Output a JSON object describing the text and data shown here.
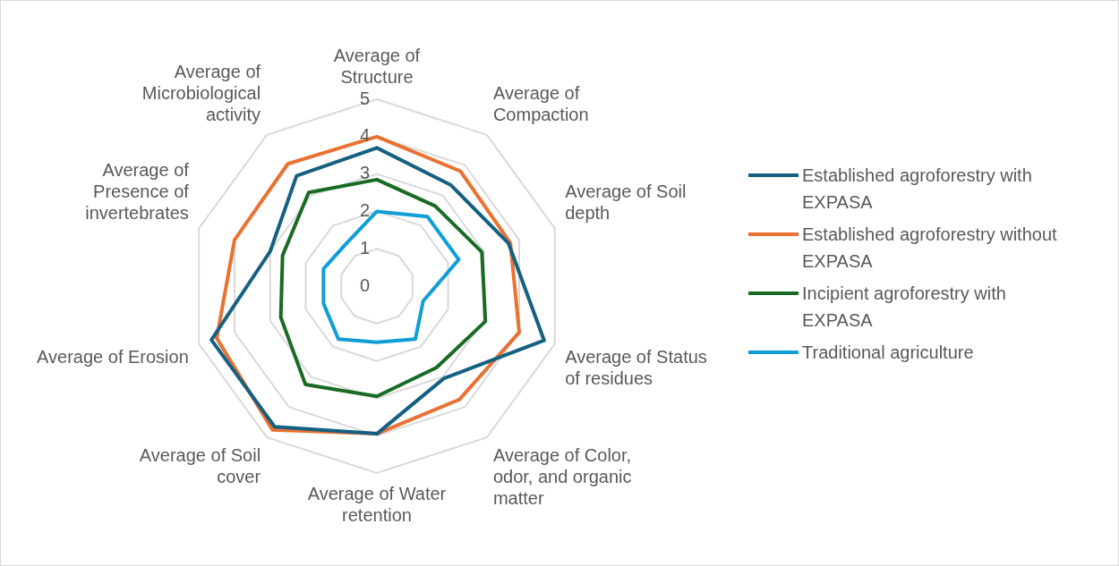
{
  "chart_data": {
    "type": "radar",
    "categories": [
      "Average of Structure",
      "Average of Compaction",
      "Average of Soil depth",
      "Average of Status of residues",
      "Average of Color, odor, and organic matter",
      "Average of Water retention",
      "Average of Soil cover",
      "Average of Erosion",
      "Average of Presence of invertebrates",
      "Average of Microbiological activity"
    ],
    "series": [
      {
        "name": "Established agroforestry with EXPASA",
        "color": "#156082",
        "values": [
          3.7,
          3.35,
          3.7,
          4.7,
          3.05,
          3.95,
          4.65,
          4.65,
          3.0,
          3.65
        ]
      },
      {
        "name": "Established agroforestry without EXPASA",
        "color": "#e97132",
        "values": [
          4.0,
          3.8,
          3.75,
          4.0,
          3.75,
          3.95,
          4.75,
          4.5,
          4.0,
          4.05
        ]
      },
      {
        "name": "Incipient agroforestry with EXPASA",
        "color": "#196b24",
        "values": [
          2.85,
          2.65,
          2.95,
          3.05,
          2.7,
          2.95,
          3.25,
          2.7,
          2.65,
          3.1
        ]
      },
      {
        "name": "Traditional agriculture",
        "color": "#0f9ed5",
        "values": [
          2.0,
          2.3,
          2.3,
          1.3,
          1.75,
          1.5,
          1.75,
          1.5,
          1.5,
          1.4
        ]
      }
    ],
    "ylim": [
      0,
      5
    ],
    "yticks": [
      0,
      1,
      2,
      3,
      4,
      5
    ],
    "grid": true,
    "legend": "right",
    "marker": "none",
    "line_style": "solid"
  }
}
